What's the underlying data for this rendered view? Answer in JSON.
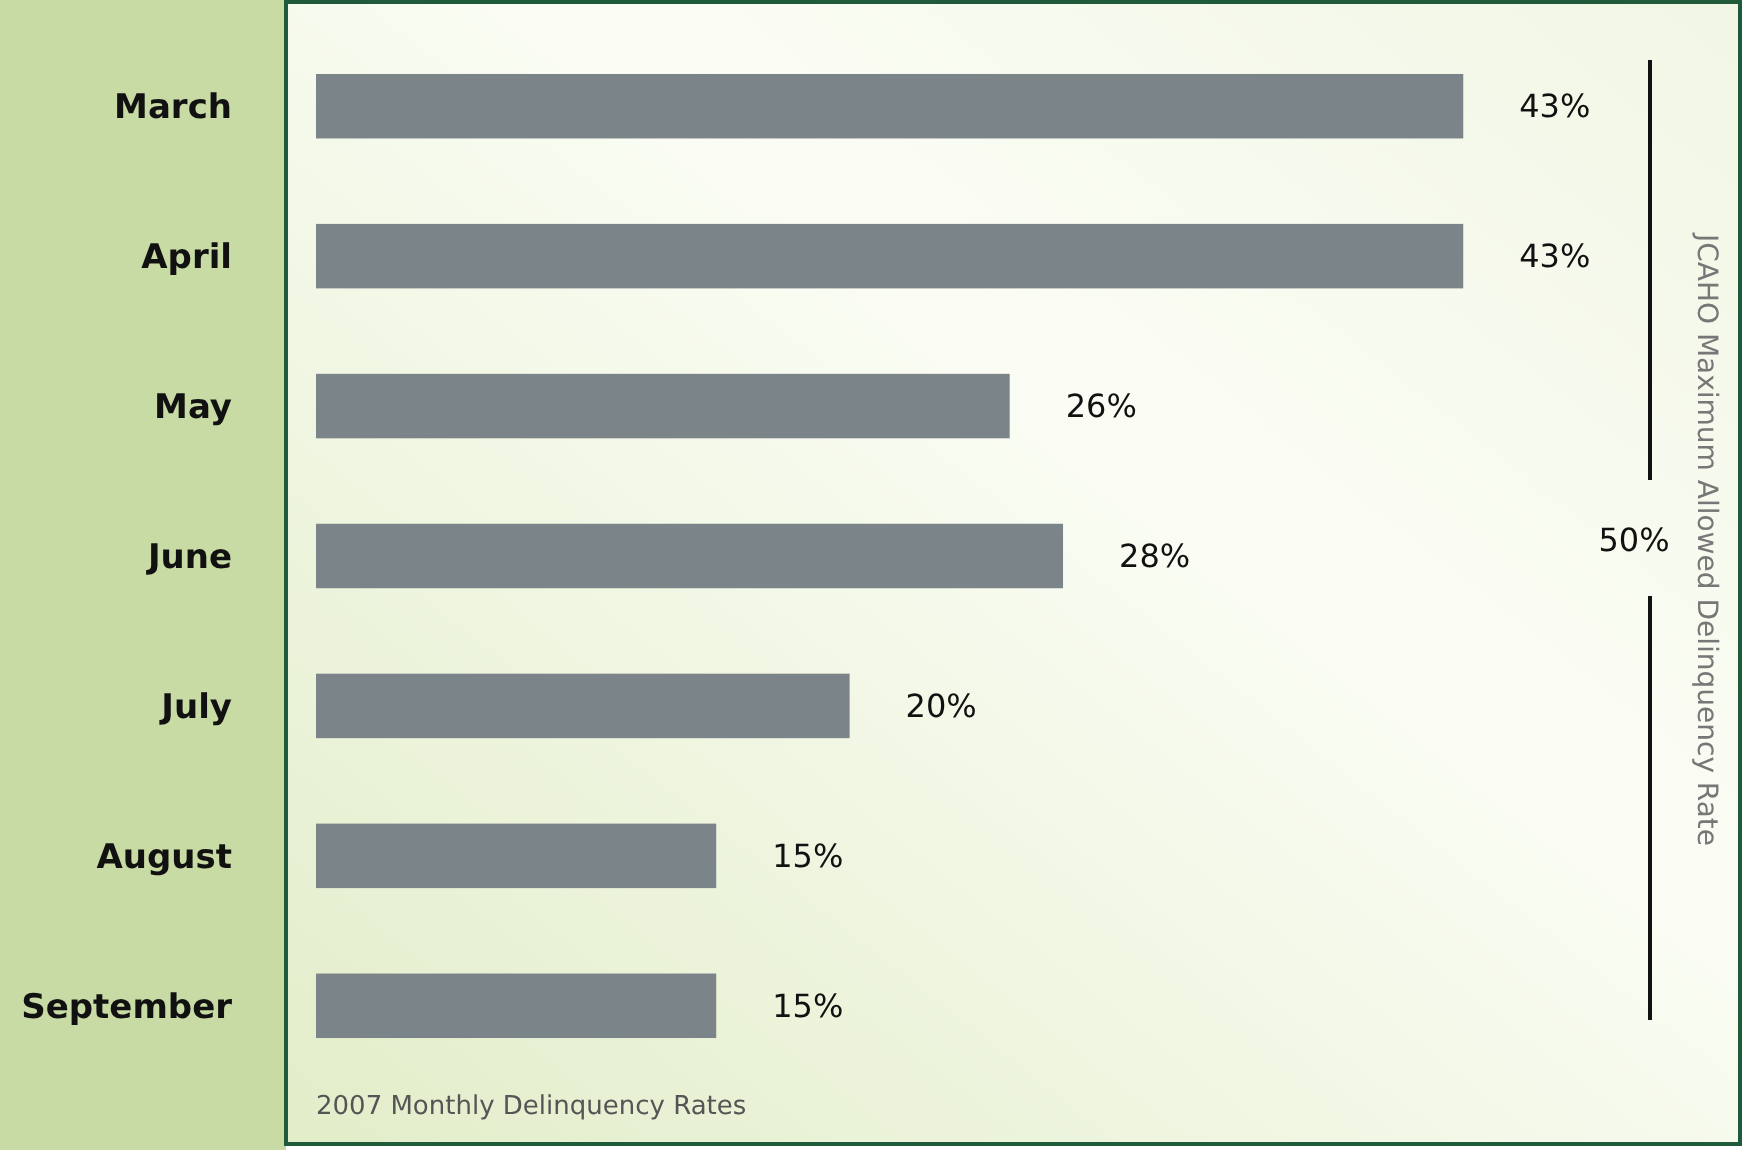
{
  "chart_data": {
    "type": "bar",
    "orientation": "horizontal",
    "title": "2007 Monthly Delinquency Rates",
    "categories": [
      "March",
      "April",
      "May",
      "June",
      "July",
      "August",
      "September"
    ],
    "values": [
      43,
      43,
      26,
      28,
      20,
      15,
      15
    ],
    "value_labels": [
      "43%",
      "43%",
      "26%",
      "28%",
      "20%",
      "15%",
      "15%"
    ],
    "color": "#7b8489",
    "ref_lines": [
      {
        "axis": "x",
        "value": 50,
        "label": "JCAHO Maximum Allowed Delinquency Rate",
        "color": "#111111"
      }
    ],
    "annotations": [
      "50%"
    ],
    "tick_labels": "y"
  }
}
